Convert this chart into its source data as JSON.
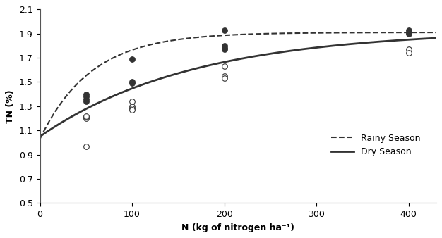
{
  "title": "",
  "xlabel": "N (kg of nitrogen ha⁻¹)",
  "ylabel": "TN (%)",
  "xlim": [
    0,
    430
  ],
  "ylim": [
    0.5,
    2.1
  ],
  "xticks": [
    0,
    100,
    200,
    300,
    400
  ],
  "yticks": [
    0.5,
    0.7,
    0.9,
    1.1,
    1.3,
    1.5,
    1.7,
    1.9,
    2.1
  ],
  "rainy_scatter_x": [
    50,
    50,
    50,
    50,
    100,
    100,
    100,
    200,
    200,
    200,
    200,
    400,
    400,
    400
  ],
  "rainy_scatter_y": [
    1.34,
    1.36,
    1.38,
    1.4,
    1.69,
    1.5,
    1.49,
    1.93,
    1.8,
    1.78,
    1.77,
    1.93,
    1.91,
    1.9
  ],
  "dry_scatter_x": [
    50,
    50,
    50,
    50,
    100,
    100,
    100,
    100,
    200,
    200,
    200,
    400,
    400
  ],
  "dry_scatter_y": [
    1.2,
    1.21,
    1.22,
    0.97,
    1.3,
    1.28,
    1.27,
    1.34,
    1.55,
    1.53,
    1.63,
    1.77,
    1.74
  ],
  "rainy_curve_params": [
    1.03,
    0.88,
    0.018
  ],
  "dry_curve_params": [
    1.05,
    0.88,
    0.006
  ],
  "line_color": "#333333",
  "scatter_fill_rainy": "#333333",
  "scatter_fill_dry": "white",
  "scatter_edge_color": "#333333",
  "legend_labels": [
    "Rainy Season",
    "Dry Season"
  ],
  "background_color": "#ffffff",
  "figsize": [
    6.26,
    3.38
  ],
  "dpi": 100
}
